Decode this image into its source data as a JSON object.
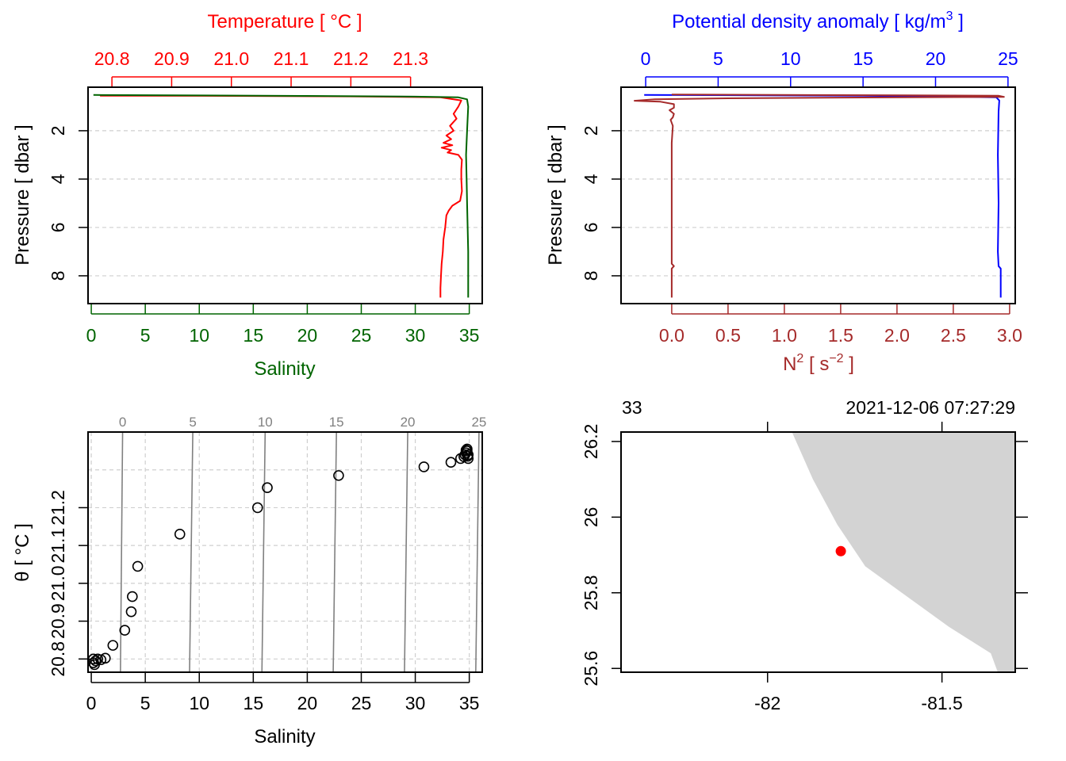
{
  "chart_data": [
    {
      "panel": "profile-temperature-salinity",
      "type": "line",
      "top_axis": {
        "title": "Temperature [ °C ]",
        "color": "#ff0000",
        "range": [
          20.76,
          21.42
        ],
        "ticks": [
          20.8,
          20.9,
          21.0,
          21.1,
          21.2,
          21.3
        ],
        "tick_labels": [
          "20.8",
          "20.9",
          "21.0",
          "21.1",
          "21.2",
          "21.3"
        ]
      },
      "bottom_axis": {
        "title": "Salinity",
        "color": "#006400",
        "range": [
          -0.3,
          36.2
        ],
        "ticks": [
          0,
          5,
          10,
          15,
          20,
          25,
          30,
          35
        ],
        "tick_labels": [
          "0",
          "5",
          "10",
          "15",
          "20",
          "25",
          "30",
          "35"
        ]
      },
      "y_axis": {
        "title": "Pressure [ dbar ]",
        "range": [
          9.15,
          0.2
        ],
        "ticks": [
          2,
          4,
          6,
          8
        ],
        "tick_labels": [
          "2",
          "4",
          "6",
          "8"
        ]
      },
      "grid": true,
      "series": [
        {
          "axis": "top",
          "color": "#ff0000",
          "points": [
            [
              20.78,
              0.55
            ],
            [
              21.0,
              0.56
            ],
            [
              21.2,
              0.58
            ],
            [
              21.35,
              0.62
            ],
            [
              21.385,
              0.75
            ],
            [
              21.38,
              1.0
            ],
            [
              21.372,
              1.3
            ],
            [
              21.377,
              1.5
            ],
            [
              21.366,
              1.8
            ],
            [
              21.372,
              2.0
            ],
            [
              21.36,
              2.2
            ],
            [
              21.368,
              2.35
            ],
            [
              21.355,
              2.5
            ],
            [
              21.37,
              2.6
            ],
            [
              21.352,
              2.7
            ],
            [
              21.368,
              2.8
            ],
            [
              21.362,
              2.9
            ],
            [
              21.38,
              3.0
            ],
            [
              21.386,
              3.2
            ],
            [
              21.385,
              3.6
            ],
            [
              21.385,
              4.0
            ],
            [
              21.386,
              4.5
            ],
            [
              21.383,
              4.9
            ],
            [
              21.37,
              5.1
            ],
            [
              21.364,
              5.3
            ],
            [
              21.36,
              5.5
            ],
            [
              21.358,
              6.0
            ],
            [
              21.355,
              6.5
            ],
            [
              21.354,
              7.0
            ],
            [
              21.352,
              7.5
            ],
            [
              21.351,
              8.0
            ],
            [
              21.35,
              8.5
            ],
            [
              21.35,
              8.9
            ]
          ]
        },
        {
          "axis": "bottom",
          "color": "#006400",
          "points": [
            [
              0.2,
              0.52
            ],
            [
              10,
              0.54
            ],
            [
              20,
              0.56
            ],
            [
              30,
              0.59
            ],
            [
              34,
              0.62
            ],
            [
              34.8,
              0.7
            ],
            [
              34.9,
              1.0
            ],
            [
              34.8,
              2.0
            ],
            [
              34.7,
              3.0
            ],
            [
              34.75,
              4.0
            ],
            [
              34.8,
              5.0
            ],
            [
              34.85,
              6.0
            ],
            [
              34.9,
              7.0
            ],
            [
              34.9,
              8.0
            ],
            [
              34.9,
              8.9
            ]
          ]
        }
      ]
    },
    {
      "panel": "profile-density-n2",
      "type": "line",
      "top_axis": {
        "title": "Potential density anomaly [ kg/m",
        "title_sup": "3",
        "title_end": " ]",
        "color": "#0000ff",
        "range": [
          -1.7,
          25.5
        ],
        "ticks": [
          0,
          5,
          10,
          15,
          20,
          25
        ],
        "tick_labels": [
          "0",
          "5",
          "10",
          "15",
          "20",
          "25"
        ]
      },
      "bottom_axis": {
        "title": "N",
        "title_sup": "2",
        "title_mid": " [ s",
        "title_sup2": "−2",
        "title_end": " ]",
        "color": "#a52a2a",
        "range": [
          -0.45,
          3.05
        ],
        "ticks": [
          0.0,
          0.5,
          1.0,
          1.5,
          2.0,
          2.5,
          3.0
        ],
        "tick_labels": [
          "0.0",
          "0.5",
          "1.0",
          "1.5",
          "2.0",
          "2.5",
          "3.0"
        ]
      },
      "y_axis": {
        "title": "Pressure [ dbar ]",
        "range": [
          9.15,
          0.2
        ],
        "ticks": [
          2,
          4,
          6,
          8
        ],
        "tick_labels": [
          "2",
          "4",
          "6",
          "8"
        ]
      },
      "grid": true,
      "series": [
        {
          "axis": "top",
          "color": "#0000ff",
          "points": [
            [
              -0.1,
              0.52
            ],
            [
              15,
              0.55
            ],
            [
              24.2,
              0.62
            ],
            [
              24.4,
              0.75
            ],
            [
              24.35,
              1.2
            ],
            [
              24.3,
              3.0
            ],
            [
              24.35,
              5.0
            ],
            [
              24.3,
              7.0
            ],
            [
              24.35,
              7.6
            ],
            [
              24.5,
              7.7
            ],
            [
              24.5,
              8.9
            ]
          ]
        },
        {
          "axis": "bottom",
          "color": "#a52a2a",
          "points": [
            [
              0.0,
              0.5
            ],
            [
              2.9,
              0.55
            ],
            [
              2.95,
              0.6
            ],
            [
              1.5,
              0.63
            ],
            [
              0.5,
              0.66
            ],
            [
              -0.15,
              0.7
            ],
            [
              -0.33,
              0.76
            ],
            [
              -0.1,
              0.8
            ],
            [
              0.02,
              0.9
            ],
            [
              0.02,
              1.05
            ],
            [
              -0.02,
              1.15
            ],
            [
              0.02,
              1.3
            ],
            [
              0.01,
              1.45
            ],
            [
              -0.01,
              1.55
            ],
            [
              0.01,
              1.8
            ],
            [
              0.0,
              2.5
            ],
            [
              0.0,
              4.0
            ],
            [
              0.0,
              6.0
            ],
            [
              0.0,
              7.5
            ],
            [
              0.02,
              7.6
            ],
            [
              0.0,
              7.7
            ],
            [
              0.0,
              8.9
            ]
          ]
        }
      ]
    },
    {
      "panel": "ts-diagram",
      "type": "scatter",
      "x_axis": {
        "title": "Salinity",
        "range": [
          -0.3,
          36.2
        ],
        "ticks": [
          0,
          5,
          10,
          15,
          20,
          25,
          30,
          35
        ],
        "tick_labels": [
          "0",
          "5",
          "10",
          "15",
          "20",
          "25",
          "30",
          "35"
        ]
      },
      "y_axis": {
        "title": "θ [ °C ]",
        "range": [
          20.765,
          21.4
        ],
        "ticks": [
          20.8,
          20.9,
          21.0,
          21.1,
          21.2
        ],
        "tick_labels": [
          "20.8",
          "20.9",
          "21.0",
          "21.1",
          "21.2"
        ]
      },
      "density_axis": {
        "color": "#808080",
        "tick_labels": [
          "0",
          "5",
          "10",
          "15",
          "20",
          "25"
        ],
        "isopycnals": [
          {
            "sigma": 0,
            "x_bottom": 2.7,
            "x_top": 2.9
          },
          {
            "sigma": 5,
            "x_bottom": 9.1,
            "x_top": 9.4
          },
          {
            "sigma": 10,
            "x_bottom": 15.8,
            "x_top": 16.1
          },
          {
            "sigma": 15,
            "x_bottom": 22.4,
            "x_top": 22.7
          },
          {
            "sigma": 20,
            "x_bottom": 29.0,
            "x_top": 29.3
          },
          {
            "sigma": 25,
            "x_bottom": 35.6,
            "x_top": 35.9
          }
        ]
      },
      "grid": true,
      "points": [
        [
          0.2,
          20.79
        ],
        [
          0.2,
          20.8
        ],
        [
          0.3,
          20.785
        ],
        [
          0.4,
          20.795
        ],
        [
          0.6,
          20.8
        ],
        [
          0.9,
          20.798
        ],
        [
          1.3,
          20.802
        ],
        [
          2.0,
          20.836
        ],
        [
          3.1,
          20.876
        ],
        [
          3.7,
          20.925
        ],
        [
          3.8,
          20.965
        ],
        [
          4.3,
          21.045
        ],
        [
          8.2,
          21.13
        ],
        [
          15.4,
          21.2
        ],
        [
          16.3,
          21.253
        ],
        [
          22.9,
          21.285
        ],
        [
          30.8,
          21.308
        ],
        [
          33.3,
          21.32
        ],
        [
          34.2,
          21.33
        ],
        [
          34.5,
          21.335
        ],
        [
          34.6,
          21.34
        ],
        [
          34.7,
          21.345
        ],
        [
          34.8,
          21.35
        ],
        [
          34.8,
          21.355
        ],
        [
          34.9,
          21.33
        ],
        [
          34.9,
          21.34
        ],
        [
          34.7,
          21.352
        ],
        [
          34.85,
          21.336
        ]
      ]
    },
    {
      "panel": "map",
      "type": "map",
      "station_label": "33",
      "time_label": "2021-12-06 07:27:29",
      "lon_range": [
        -82.42,
        -81.29
      ],
      "lat_range": [
        25.59,
        26.225
      ],
      "x_ticks": [
        -82,
        -81.5
      ],
      "x_tick_labels": [
        "-82",
        "-81.5"
      ],
      "y_ticks": [
        25.6,
        25.8,
        26.0,
        26.2
      ],
      "y_tick_labels": [
        "25.6",
        "25.8",
        "26",
        "26.2"
      ],
      "land_color": "#d3d3d3",
      "coastline": [
        [
          -81.93,
          26.225
        ],
        [
          -81.87,
          26.1
        ],
        [
          -81.8,
          25.98
        ],
        [
          -81.72,
          25.87
        ],
        [
          -81.6,
          25.79
        ],
        [
          -81.48,
          25.71
        ],
        [
          -81.36,
          25.64
        ],
        [
          -81.34,
          25.59
        ]
      ],
      "station": {
        "lon": -81.79,
        "lat": 25.91,
        "color": "#ff0000"
      }
    }
  ]
}
